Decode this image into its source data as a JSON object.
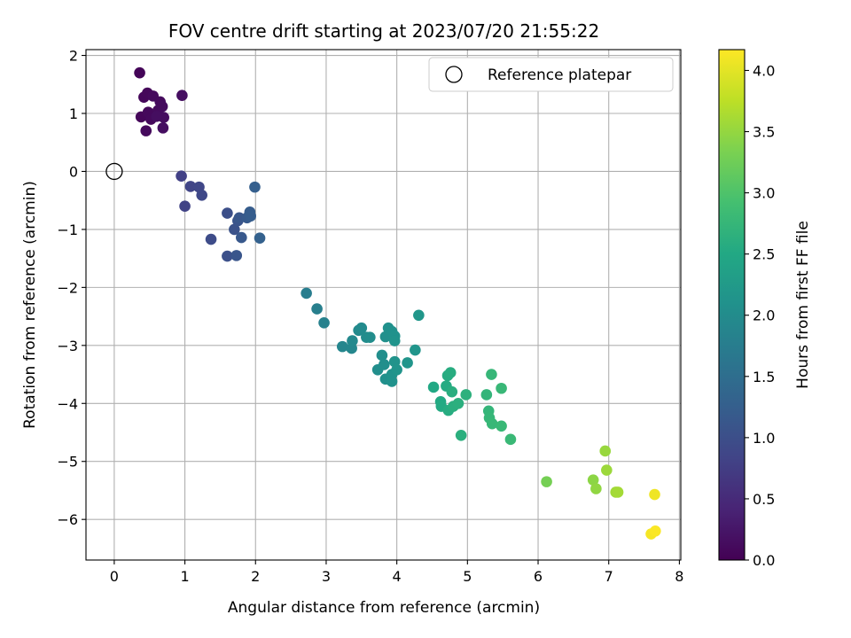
{
  "chart_data": {
    "type": "scatter",
    "title": "FOV centre drift starting at 2023/07/20 21:55:22",
    "xlabel": "Angular distance from reference (arcmin)",
    "ylabel": "Rotation from reference (arcmin)",
    "xlim": [
      -0.4,
      8.02
    ],
    "ylim": [
      -6.7,
      2.1
    ],
    "xticks": [
      0,
      1,
      2,
      3,
      4,
      5,
      6,
      7,
      8
    ],
    "yticks": [
      2,
      1,
      0,
      -1,
      -2,
      -3,
      -4,
      -5,
      -6
    ],
    "xtick_labels": [
      "0",
      "1",
      "2",
      "3",
      "4",
      "5",
      "6",
      "7",
      "8"
    ],
    "ytick_labels": [
      "2",
      "1",
      "0",
      "−1",
      "−2",
      "−3",
      "−4",
      "−5",
      "−6"
    ],
    "grid": true,
    "legend": {
      "position": "top-right",
      "entries": [
        "Reference platepar"
      ]
    },
    "reference_point": {
      "x": 0,
      "y": 0
    },
    "colorbar": {
      "label": "Hours from first FF file",
      "min": 0.0,
      "max": 4.17,
      "ticks": [
        0.0,
        0.5,
        1.0,
        1.5,
        2.0,
        2.5,
        3.0,
        3.5,
        4.0
      ],
      "tick_labels": [
        "0.0",
        "0.5",
        "1.0",
        "1.5",
        "2.0",
        "2.5",
        "3.0",
        "3.5",
        "4.0"
      ],
      "colormap": "viridis"
    },
    "points": [
      [
        0.36,
        1.7,
        0.05
      ],
      [
        0.38,
        0.94,
        0.06
      ],
      [
        0.42,
        1.28,
        0.07
      ],
      [
        0.47,
        1.35,
        0.08
      ],
      [
        0.48,
        1.02,
        0.09
      ],
      [
        0.45,
        0.7,
        0.1
      ],
      [
        0.52,
        0.9,
        0.1
      ],
      [
        0.55,
        1.3,
        0.11
      ],
      [
        0.62,
        1.05,
        0.12
      ],
      [
        0.65,
        1.2,
        0.12
      ],
      [
        0.68,
        1.12,
        0.13
      ],
      [
        0.7,
        0.93,
        0.14
      ],
      [
        0.69,
        0.75,
        0.15
      ],
      [
        0.6,
        0.95,
        0.15
      ],
      [
        0.96,
        1.31,
        0.17
      ],
      [
        0.95,
        -0.08,
        0.8
      ],
      [
        1.0,
        -0.6,
        0.82
      ],
      [
        1.08,
        -0.26,
        0.85
      ],
      [
        1.2,
        -0.27,
        0.88
      ],
      [
        1.24,
        -0.41,
        0.9
      ],
      [
        1.37,
        -1.17,
        0.95
      ],
      [
        1.6,
        -0.72,
        1.0
      ],
      [
        1.6,
        -1.46,
        1.02
      ],
      [
        1.7,
        -1.0,
        1.05
      ],
      [
        1.75,
        -0.85,
        1.08
      ],
      [
        1.73,
        -1.45,
        1.1
      ],
      [
        1.77,
        -0.8,
        1.12
      ],
      [
        1.8,
        -1.14,
        1.15
      ],
      [
        1.88,
        -0.8,
        1.18
      ],
      [
        1.92,
        -0.7,
        1.2
      ],
      [
        1.93,
        -0.77,
        1.22
      ],
      [
        1.99,
        -0.27,
        1.25
      ],
      [
        2.06,
        -1.15,
        1.28
      ],
      [
        2.72,
        -2.1,
        1.75
      ],
      [
        2.87,
        -2.37,
        1.78
      ],
      [
        2.97,
        -2.61,
        1.82
      ],
      [
        3.23,
        -3.02,
        1.9
      ],
      [
        3.36,
        -3.05,
        1.92
      ],
      [
        3.37,
        -2.92,
        1.95
      ],
      [
        3.46,
        -2.74,
        1.97
      ],
      [
        3.5,
        -2.7,
        1.98
      ],
      [
        3.57,
        -2.86,
        2.0
      ],
      [
        3.62,
        -2.86,
        2.02
      ],
      [
        3.73,
        -3.42,
        2.03
      ],
      [
        3.79,
        -3.17,
        2.04
      ],
      [
        3.82,
        -3.33,
        2.05
      ],
      [
        3.84,
        -2.85,
        2.06
      ],
      [
        3.84,
        -3.58,
        2.07
      ],
      [
        3.88,
        -2.7,
        2.08
      ],
      [
        3.93,
        -2.76,
        2.09
      ],
      [
        3.93,
        -3.5,
        2.1
      ],
      [
        3.93,
        -3.62,
        2.1
      ],
      [
        3.97,
        -2.84,
        2.11
      ],
      [
        3.97,
        -2.92,
        2.12
      ],
      [
        3.97,
        -3.28,
        2.13
      ],
      [
        4.0,
        -3.42,
        2.14
      ],
      [
        4.15,
        -3.3,
        2.15
      ],
      [
        4.26,
        -3.08,
        2.16
      ],
      [
        4.31,
        -2.48,
        2.18
      ],
      [
        4.52,
        -3.72,
        2.5
      ],
      [
        4.62,
        -3.97,
        2.52
      ],
      [
        4.63,
        -4.05,
        2.53
      ],
      [
        4.7,
        -3.7,
        2.55
      ],
      [
        4.72,
        -3.52,
        2.56
      ],
      [
        4.73,
        -4.12,
        2.57
      ],
      [
        4.76,
        -3.47,
        2.58
      ],
      [
        4.78,
        -3.8,
        2.6
      ],
      [
        4.8,
        -4.05,
        2.61
      ],
      [
        4.87,
        -4.0,
        2.62
      ],
      [
        4.91,
        -4.55,
        2.63
      ],
      [
        4.98,
        -3.85,
        2.65
      ],
      [
        5.27,
        -3.85,
        2.72
      ],
      [
        5.3,
        -4.13,
        2.74
      ],
      [
        5.31,
        -4.25,
        2.75
      ],
      [
        5.34,
        -3.5,
        2.76
      ],
      [
        5.35,
        -4.35,
        2.77
      ],
      [
        5.48,
        -3.74,
        2.78
      ],
      [
        5.48,
        -4.39,
        2.79
      ],
      [
        5.61,
        -4.62,
        2.8
      ],
      [
        6.12,
        -5.35,
        3.3
      ],
      [
        6.78,
        -5.32,
        3.45
      ],
      [
        6.82,
        -5.47,
        3.48
      ],
      [
        6.95,
        -4.82,
        3.52
      ],
      [
        6.97,
        -5.15,
        3.55
      ],
      [
        7.1,
        -5.53,
        3.58
      ],
      [
        7.13,
        -5.53,
        3.6
      ],
      [
        7.65,
        -5.57,
        4.08
      ],
      [
        7.6,
        -6.25,
        4.12
      ],
      [
        7.66,
        -6.2,
        4.15
      ]
    ]
  }
}
